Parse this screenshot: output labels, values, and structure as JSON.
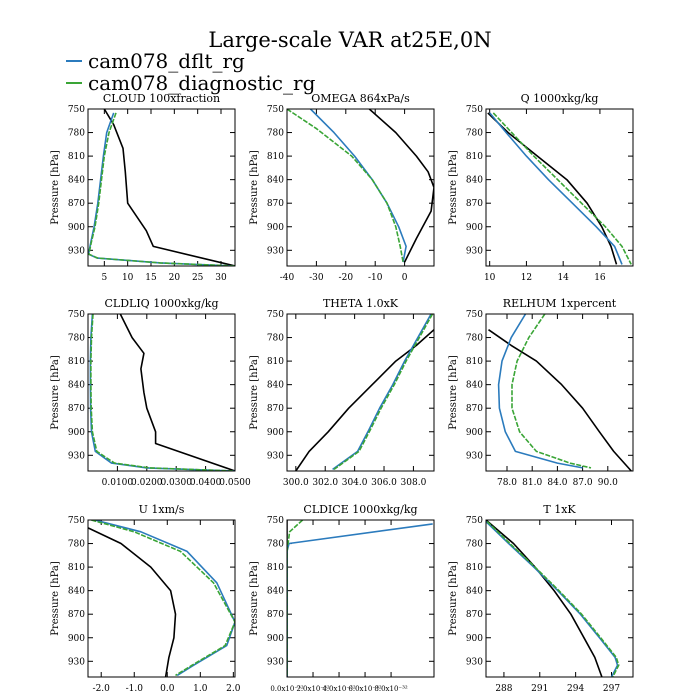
{
  "page_title": "Large-scale VAR at25E,0N",
  "legend": [
    {
      "label": "cam078_dflt_rg",
      "color": "#2b7bbd"
    },
    {
      "label": "cam078_diagnostic_rg",
      "color": "#3aa536"
    }
  ],
  "colors": {
    "control": "#000000",
    "dflt": "#2b7bbd",
    "diagnostic": "#3aa536"
  },
  "chart_data": [
    {
      "type": "line",
      "title": "CLOUD  100xfraction",
      "ylabel": "Pressure [hPa]",
      "xlim": [
        1.5,
        33
      ],
      "ylim": [
        950,
        750
      ],
      "xticks": [
        "5",
        "10",
        "15",
        "20",
        "25",
        "30"
      ],
      "xtick_values": [
        5,
        10,
        15,
        20,
        25,
        30
      ],
      "yticks": [
        "750",
        "780",
        "810",
        "840",
        "870",
        "900",
        "930"
      ],
      "ytick_values": [
        750,
        780,
        810,
        840,
        870,
        900,
        930
      ],
      "series": [
        {
          "name": "control",
          "x": [
            5,
            7,
            9,
            9.5,
            10,
            14,
            15.5,
            33
          ],
          "y": [
            750,
            770,
            800,
            830,
            870,
            905,
            925,
            950
          ]
        },
        {
          "name": "cam078_dflt_rg",
          "x": [
            7,
            5.5,
            4.8,
            4.2,
            3.6,
            2.8,
            2.1,
            1.6,
            3.5,
            17,
            33
          ],
          "y": [
            755,
            780,
            810,
            840,
            870,
            900,
            920,
            935,
            940,
            946,
            950
          ]
        },
        {
          "name": "cam078_diagnostic_rg",
          "x": [
            7.5,
            6,
            5,
            4.4,
            3.8,
            3,
            2.2,
            1.7,
            3.6,
            17,
            33
          ],
          "y": [
            755,
            780,
            810,
            840,
            870,
            900,
            920,
            935,
            940,
            946,
            950
          ]
        }
      ]
    },
    {
      "type": "line",
      "title": "OMEGA  864xPa/s",
      "ylabel": "Pressure [hPa]",
      "xlim": [
        -40,
        10
      ],
      "ylim": [
        950,
        750
      ],
      "xticks": [
        "-40",
        "-30",
        "-20",
        "-10",
        "0"
      ],
      "xtick_values": [
        -40,
        -30,
        -20,
        -10,
        0
      ],
      "yticks": [
        "750",
        "780",
        "810",
        "840",
        "870",
        "900",
        "930"
      ],
      "ytick_values": [
        750,
        780,
        810,
        840,
        870,
        900,
        930
      ],
      "series": [
        {
          "name": "control",
          "x": [
            -12,
            -3,
            4,
            8,
            10,
            9,
            4,
            0
          ],
          "y": [
            750,
            780,
            810,
            830,
            850,
            880,
            915,
            945
          ]
        },
        {
          "name": "cam078_dflt_rg",
          "x": [
            -32,
            -24,
            -17,
            -11,
            -6,
            -2,
            0.5,
            -0.5
          ],
          "y": [
            750,
            780,
            810,
            840,
            870,
            900,
            925,
            945
          ]
        },
        {
          "name": "cam078_diagnostic_rg",
          "x": [
            -40,
            -30,
            -18,
            -11,
            -6,
            -3,
            -1.5,
            -0.5
          ],
          "y": [
            750,
            775,
            810,
            840,
            870,
            900,
            925,
            945
          ]
        }
      ]
    },
    {
      "type": "line",
      "title": "Q  1000xkg/kg",
      "ylabel": "Pressure [hPa]",
      "xlim": [
        9.8,
        17.8
      ],
      "ylim": [
        950,
        750
      ],
      "xticks": [
        "10",
        "12",
        "14",
        "16"
      ],
      "xtick_values": [
        10,
        12,
        14,
        16
      ],
      "yticks": [
        "750",
        "780",
        "810",
        "840",
        "870",
        "900",
        "930"
      ],
      "ytick_values": [
        750,
        780,
        810,
        840,
        870,
        900,
        930
      ],
      "series": [
        {
          "name": "control",
          "x": [
            9.9,
            11,
            12.6,
            14.2,
            15.3,
            16.1,
            16.6,
            16.9
          ],
          "y": [
            755,
            780,
            810,
            840,
            870,
            900,
            925,
            948
          ]
        },
        {
          "name": "cam078_dflt_rg",
          "x": [
            10,
            10.9,
            12,
            13.2,
            14.5,
            15.8,
            16.8,
            17.2
          ],
          "y": [
            755,
            780,
            810,
            840,
            870,
            900,
            925,
            948
          ]
        },
        {
          "name": "cam078_diagnostic_rg",
          "x": [
            10.2,
            11.2,
            12.4,
            13.7,
            15,
            16.3,
            17.2,
            17.7
          ],
          "y": [
            755,
            780,
            810,
            840,
            870,
            900,
            925,
            948
          ]
        }
      ]
    },
    {
      "type": "line",
      "title": "CLDLIQ  1000xkg/kg",
      "ylabel": "Pressure [hPa]",
      "xlim": [
        0,
        0.05
      ],
      "ylim": [
        950,
        750
      ],
      "xticks": [
        "0.0100",
        "0.0200",
        "0.0300",
        "0.0400",
        "0.0500"
      ],
      "xtick_values": [
        0.01,
        0.02,
        0.03,
        0.04,
        0.05
      ],
      "yticks": [
        "750",
        "780",
        "810",
        "840",
        "870",
        "900",
        "930"
      ],
      "ytick_values": [
        750,
        780,
        810,
        840,
        870,
        900,
        930
      ],
      "series": [
        {
          "name": "control",
          "x": [
            0.011,
            0.015,
            0.019,
            0.018,
            0.019,
            0.02,
            0.023,
            0.023,
            0.05
          ],
          "y": [
            750,
            780,
            800,
            820,
            850,
            870,
            900,
            915,
            950
          ]
        },
        {
          "name": "cam078_dflt_rg",
          "x": [
            0.0015,
            0.001,
            0.0008,
            0.0008,
            0.0009,
            0.0012,
            0.0025,
            0.008,
            0.02,
            0.05
          ],
          "y": [
            750,
            780,
            810,
            840,
            870,
            900,
            925,
            940,
            946,
            950
          ]
        },
        {
          "name": "cam078_diagnostic_rg",
          "x": [
            0.0017,
            0.0012,
            0.001,
            0.001,
            0.0011,
            0.0015,
            0.003,
            0.009,
            0.021,
            0.05
          ],
          "y": [
            750,
            780,
            810,
            840,
            870,
            900,
            925,
            940,
            946,
            950
          ]
        }
      ]
    },
    {
      "type": "line",
      "title": "THETA  1.0xK",
      "ylabel": "Pressure [hPa]",
      "xlim": [
        299.4,
        309.4
      ],
      "ylim": [
        950,
        750
      ],
      "xticks": [
        "300.0",
        "302.0",
        "304.0",
        "306.0",
        "308.0"
      ],
      "xtick_values": [
        300,
        302,
        304,
        306,
        308
      ],
      "yticks": [
        "750",
        "780",
        "810",
        "840",
        "870",
        "900",
        "930"
      ],
      "ytick_values": [
        750,
        780,
        810,
        840,
        870,
        900,
        930
      ],
      "series": [
        {
          "name": "control",
          "x": [
            309.4,
            308.2,
            306.8,
            305.2,
            303.6,
            302.2,
            300.9,
            300
          ],
          "y": [
            770,
            790,
            810,
            840,
            870,
            900,
            925,
            950
          ]
        },
        {
          "name": "cam078_dflt_rg",
          "x": [
            309.2,
            308.3,
            307.4,
            306.6,
            305.7,
            304.9,
            304.2,
            302.5
          ],
          "y": [
            750,
            780,
            810,
            840,
            870,
            900,
            925,
            948
          ]
        },
        {
          "name": "cam078_diagnostic_rg",
          "x": [
            309.3,
            308.4,
            307.5,
            306.7,
            305.8,
            305,
            304.3,
            302.6
          ],
          "y": [
            750,
            780,
            810,
            840,
            870,
            900,
            925,
            948
          ]
        }
      ]
    },
    {
      "type": "line",
      "title": "RELHUM  1xpercent",
      "ylabel": "Pressure [hPa]",
      "xlim": [
        75.5,
        93
      ],
      "ylim": [
        950,
        750
      ],
      "xticks": [
        "78.0",
        "81.0",
        "84.0",
        "87.0",
        "90.0"
      ],
      "xtick_values": [
        78,
        81,
        84,
        87,
        90
      ],
      "yticks": [
        "750",
        "780",
        "810",
        "840",
        "870",
        "900",
        "930"
      ],
      "ytick_values": [
        750,
        780,
        810,
        840,
        870,
        900,
        930
      ],
      "series": [
        {
          "name": "control",
          "x": [
            75.8,
            78.5,
            81.5,
            84.5,
            87,
            89,
            90.7,
            92.8
          ],
          "y": [
            770,
            790,
            810,
            840,
            870,
            900,
            925,
            950
          ]
        },
        {
          "name": "cam078_dflt_rg",
          "x": [
            80.2,
            78.5,
            77.4,
            77,
            77.1,
            77.8,
            79,
            84,
            87
          ],
          "y": [
            750,
            780,
            810,
            840,
            870,
            900,
            925,
            940,
            946
          ]
        },
        {
          "name": "cam078_diagnostic_rg",
          "x": [
            82.5,
            80.6,
            79.2,
            78.6,
            78.6,
            79.5,
            81.5,
            85.5,
            88
          ],
          "y": [
            750,
            780,
            810,
            840,
            870,
            900,
            925,
            940,
            946
          ]
        }
      ]
    },
    {
      "type": "line",
      "title": "U  1xm/s",
      "ylabel": "Pressure [hPa]",
      "xlim": [
        -2.4,
        2.05
      ],
      "ylim": [
        950,
        750
      ],
      "xticks": [
        "-2.0",
        "-1.0",
        "0.0",
        "1.0",
        "2.0"
      ],
      "xtick_values": [
        -2,
        -1,
        0,
        1,
        2
      ],
      "yticks": [
        "750",
        "780",
        "810",
        "840",
        "870",
        "900",
        "930"
      ],
      "ytick_values": [
        750,
        780,
        810,
        840,
        870,
        900,
        930
      ],
      "series": [
        {
          "name": "control",
          "x": [
            -2.4,
            -1.4,
            -0.5,
            0.1,
            0.25,
            0.2,
            0.05,
            -0.05
          ],
          "y": [
            760,
            780,
            810,
            840,
            870,
            900,
            925,
            950
          ]
        },
        {
          "name": "cam078_dflt_rg",
          "x": [
            -2.2,
            -0.8,
            0.6,
            1.5,
            2.05,
            1.8,
            0.8,
            0.3
          ],
          "y": [
            750,
            765,
            790,
            830,
            880,
            910,
            935,
            948
          ]
        },
        {
          "name": "cam078_diagnostic_rg",
          "x": [
            -2.3,
            -1,
            0.4,
            1.4,
            2.05,
            1.75,
            0.75,
            0.25
          ],
          "y": [
            750,
            765,
            790,
            830,
            880,
            910,
            935,
            948
          ]
        }
      ]
    },
    {
      "type": "line",
      "title": "CLDICE  1000xkg/kg",
      "ylabel": "Pressure [hPa]",
      "xlim": [
        0,
        1.13e-31
      ],
      "ylim": [
        950,
        750
      ],
      "xticks": [
        "0.0x10⁻³²",
        "2.0x10⁻³²",
        "4.0x10⁻³²",
        "6.0x10⁻³²",
        "8.0x10⁻³²"
      ],
      "xtick_values": [
        0,
        2e-32,
        4e-32,
        6e-32,
        8e-32
      ],
      "yticks": [
        "750",
        "780",
        "810",
        "840",
        "870",
        "900",
        "930"
      ],
      "ytick_values": [
        750,
        780,
        810,
        840,
        870,
        900,
        930
      ],
      "series": [
        {
          "name": "control",
          "x": [
            0,
            0
          ],
          "y": [
            750,
            950
          ]
        },
        {
          "name": "cam078_dflt_rg",
          "x": [
            1.12e-31,
            1.5e-33,
            0,
            0
          ],
          "y": [
            755,
            780,
            790,
            950
          ]
        },
        {
          "name": "cam078_diagnostic_rg",
          "x": [
            1.2e-32,
            2e-33,
            0,
            0
          ],
          "y": [
            750,
            765,
            790,
            950
          ]
        }
      ]
    },
    {
      "type": "line",
      "title": "T  1xK",
      "ylabel": "Pressure [hPa]",
      "xlim": [
        286.5,
        298.8
      ],
      "ylim": [
        950,
        750
      ],
      "xticks": [
        "288",
        "291",
        "294",
        "297"
      ],
      "xtick_values": [
        288,
        291,
        294,
        297
      ],
      "yticks": [
        "750",
        "780",
        "810",
        "840",
        "870",
        "900",
        "930"
      ],
      "ytick_values": [
        750,
        780,
        810,
        840,
        870,
        900,
        930
      ],
      "series": [
        {
          "name": "control",
          "x": [
            286.5,
            288.8,
            290.6,
            292.2,
            293.6,
            294.7,
            295.6,
            296.2
          ],
          "y": [
            750,
            780,
            810,
            840,
            870,
            900,
            925,
            950
          ]
        },
        {
          "name": "cam078_dflt_rg",
          "x": [
            286.5,
            288.4,
            290.5,
            292.5,
            294.4,
            296,
            297.3,
            297.5,
            297
          ],
          "y": [
            752,
            780,
            810,
            840,
            870,
            900,
            925,
            935,
            950
          ]
        },
        {
          "name": "cam078_diagnostic_rg",
          "x": [
            286.6,
            288.5,
            290.6,
            292.6,
            294.5,
            296.1,
            297.4,
            297.6,
            297.1
          ],
          "y": [
            752,
            780,
            810,
            840,
            870,
            900,
            925,
            935,
            950
          ]
        }
      ]
    }
  ]
}
